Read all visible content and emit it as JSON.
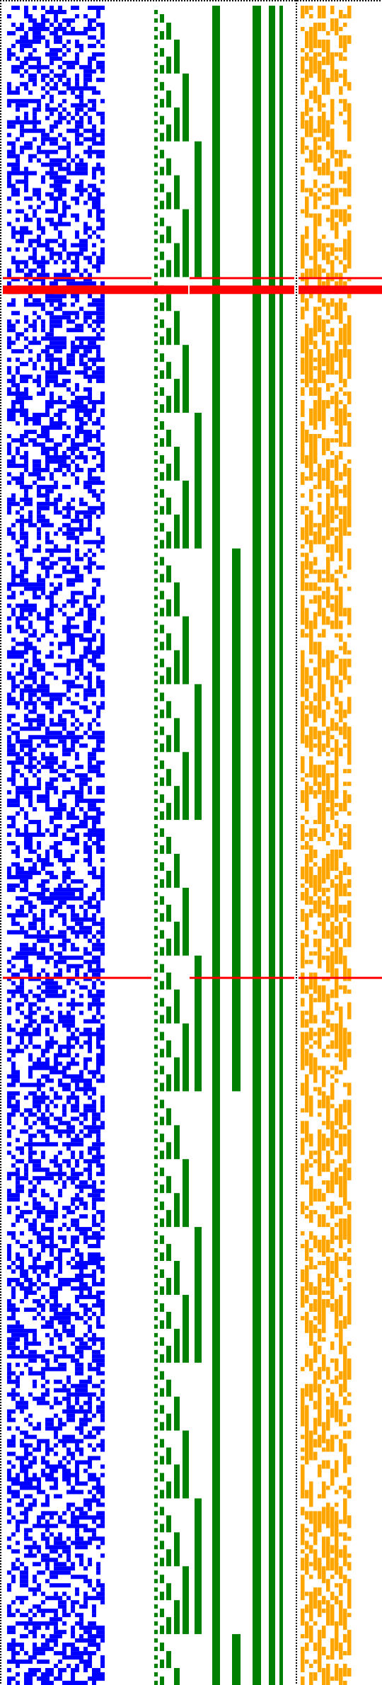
{
  "chart_data": {
    "type": "heatmap",
    "title": "",
    "xlabel": "",
    "ylabel": "",
    "grid": false,
    "rows": 396,
    "regions": [
      {
        "name": "",
        "columns": 23,
        "color": "#0000ff",
        "pattern": "random-dense",
        "fill_fraction": 0.5
      },
      {
        "name": "",
        "columns": 12,
        "color": "#008000",
        "pattern": "staircase-counter"
      },
      {
        "name": "",
        "columns": 12,
        "color": "#ffa500",
        "pattern": "random-vertical-runs",
        "fill_fraction": 0.4
      }
    ],
    "highlight_color": "#ff0000",
    "highlight_rows": [
      {
        "row": 64,
        "style": "thin-line"
      },
      {
        "row": 66,
        "style": "thick-band",
        "height_rows": 2
      },
      {
        "row": 229,
        "style": "thin-line"
      }
    ],
    "separators": {
      "color": "#000000",
      "style": "dotted"
    }
  },
  "colors": {
    "blue": "#0000ff",
    "green": "#008000",
    "orange": "#ffa500",
    "red": "#ff0000",
    "black": "#000000",
    "background": "#ffffff"
  }
}
